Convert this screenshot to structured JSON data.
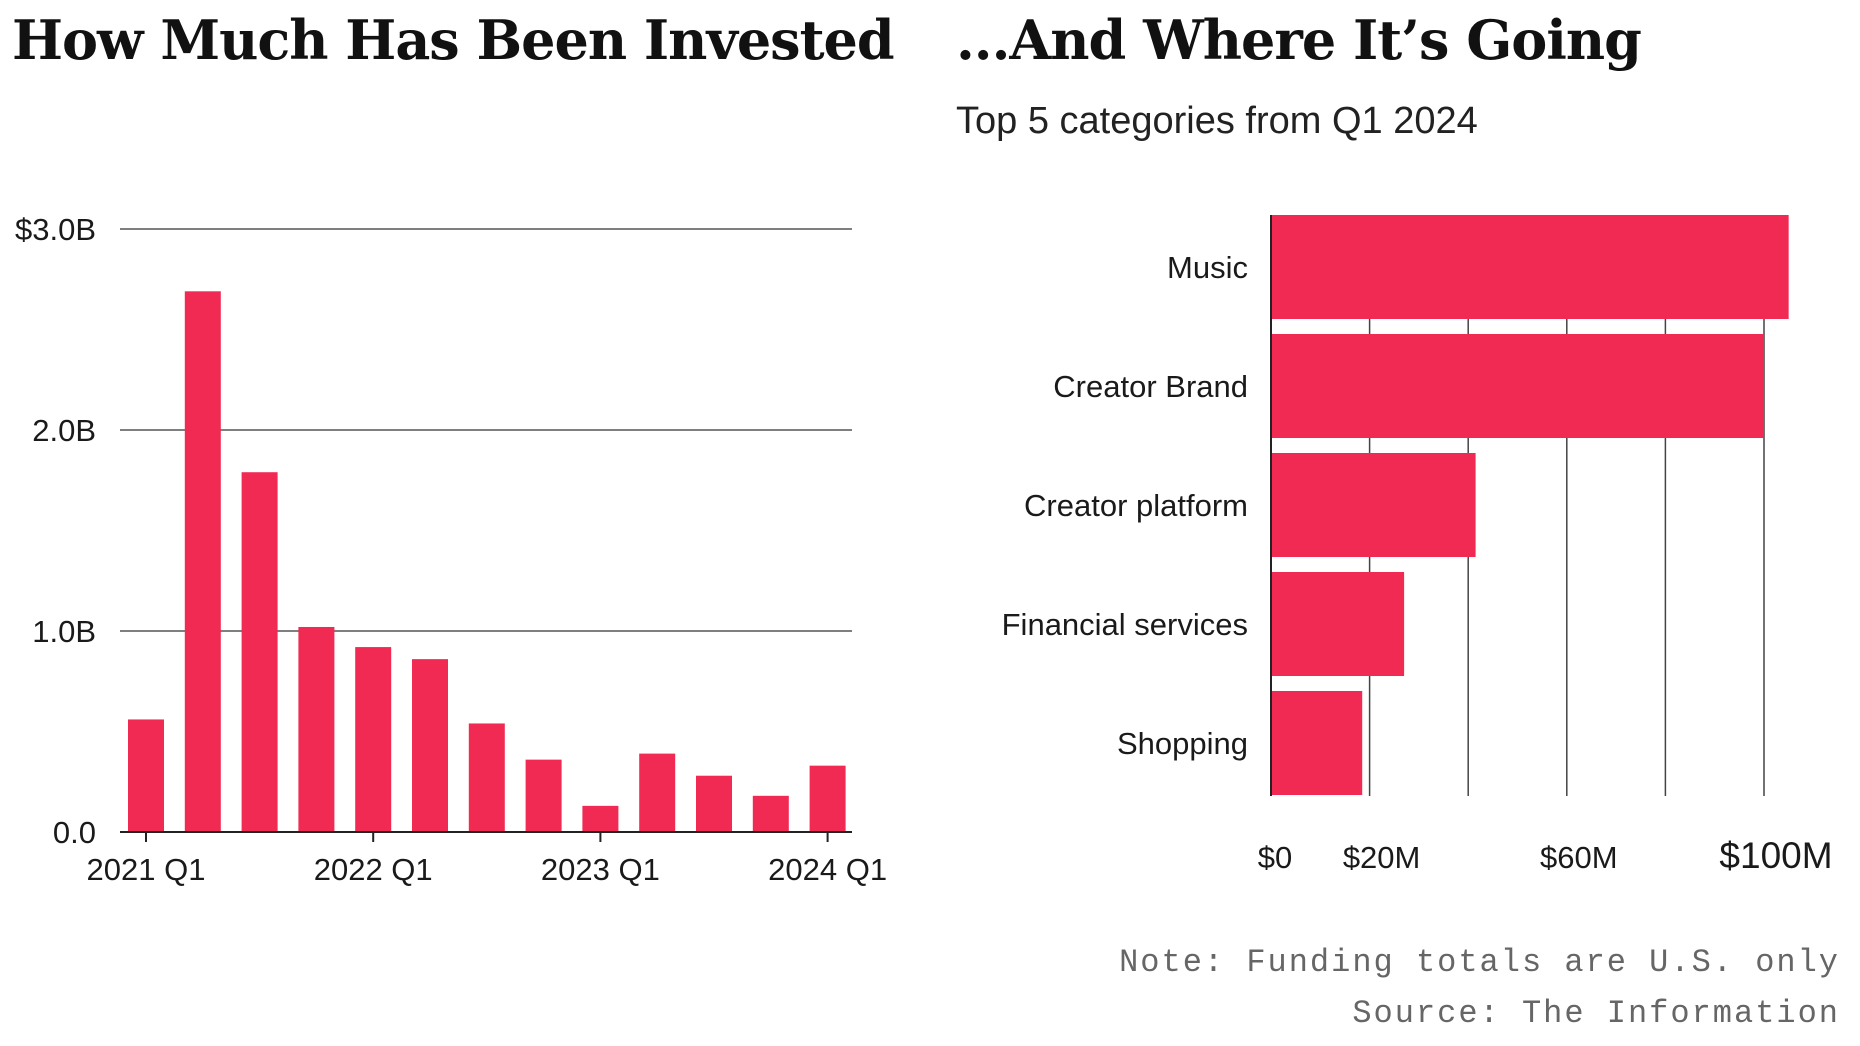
{
  "chart_data": [
    {
      "type": "bar",
      "title": "How Much Has Been Invested",
      "categories": [
        "2021 Q1",
        "2021 Q2",
        "2021 Q3",
        "2021 Q4",
        "2022 Q1",
        "2022 Q2",
        "2022 Q3",
        "2022 Q4",
        "2023 Q1",
        "2023 Q2",
        "2023 Q3",
        "2023 Q4",
        "2024 Q1"
      ],
      "values": [
        0.56,
        2.69,
        1.79,
        1.02,
        0.92,
        0.86,
        0.54,
        0.36,
        0.13,
        0.39,
        0.28,
        0.18,
        0.33
      ],
      "unit": "billions USD",
      "ylim": [
        0,
        3
      ],
      "yticks": [
        0,
        1,
        2,
        3
      ],
      "ytick_labels": [
        "0.0",
        "1.0B",
        "2.0B",
        "$3.0B"
      ],
      "xtick_labels": [
        "2021 Q1",
        "2022 Q1",
        "2023 Q1",
        "2024 Q1"
      ],
      "grid": true,
      "color": "#f02a52"
    },
    {
      "type": "bar",
      "orientation": "horizontal",
      "title": "...And Where It’s Going",
      "subtitle": "Top 5 categories from Q1 2024",
      "categories": [
        "Music",
        "Creator Brand",
        "Creator platform",
        "Financial services",
        "Shopping"
      ],
      "values": [
        105,
        100,
        41.5,
        27,
        18.5
      ],
      "unit": "millions USD",
      "xlim": [
        0,
        100
      ],
      "gridlines": [
        0,
        20,
        40,
        60,
        80,
        100
      ],
      "xtick_values": [
        0,
        20,
        60,
        100
      ],
      "xtick_labels": [
        "$0",
        "$20M",
        "$60M",
        "$100M"
      ],
      "grid": true,
      "color": "#f02a52"
    }
  ],
  "footer": {
    "note": "Note: Funding totals are U.S. only",
    "source": "Source: The Information"
  }
}
